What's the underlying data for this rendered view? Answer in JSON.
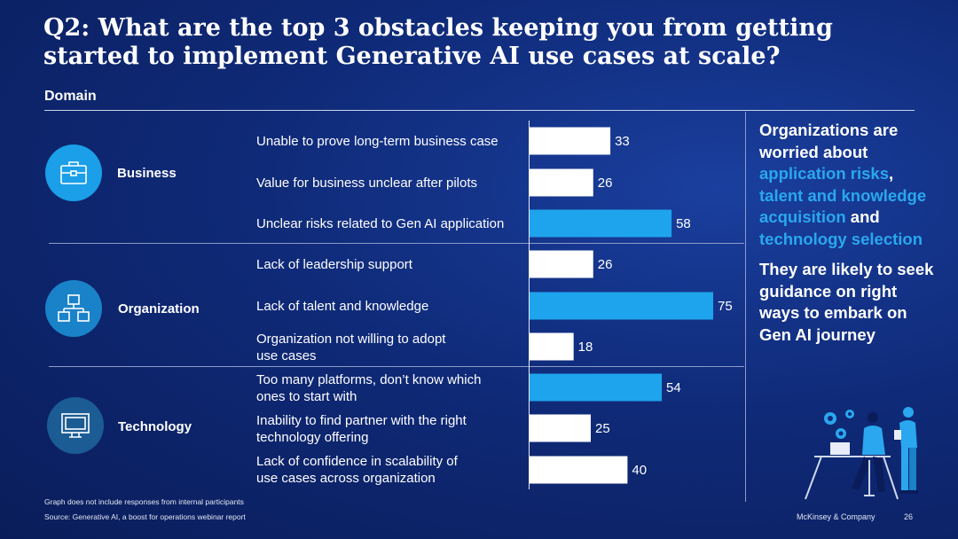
{
  "title": "Q2: What are the top 3 obstacles keeping you from getting started to implement Generative AI use cases at scale?",
  "domain_label": "Domain",
  "categories": [
    {
      "label": "Business",
      "icon": "briefcase-icon"
    },
    {
      "label": "Organization",
      "icon": "org-chart-icon"
    },
    {
      "label": "Technology",
      "icon": "monitor-icon"
    }
  ],
  "colors": {
    "white_bar": "#ffffff",
    "highlight_bar": "#1ea4ec",
    "accent_text": "#2aa7ee"
  },
  "chart_data": {
    "type": "bar",
    "orientation": "horizontal",
    "categories": [
      "Unable to prove long-term business case",
      "Value for business unclear after pilots",
      "Unclear risks related to Gen AI application",
      "Lack of leadership support",
      "Lack of talent and knowledge",
      "Organization not willing to adopt use cases",
      "Too many platforms, don’t know which ones to start with",
      "Inability to find partner with the right technology offering",
      "Lack of confidence in scalability of use cases across organization"
    ],
    "label_lines": [
      [
        "Unable to prove long-term business case"
      ],
      [
        "Value for business unclear after pilots"
      ],
      [
        "Unclear risks related to Gen AI application"
      ],
      [
        "Lack of leadership support"
      ],
      [
        "Lack of talent and knowledge"
      ],
      [
        "Organization not willing to adopt",
        "use cases"
      ],
      [
        "Too many platforms, don’t know which",
        "ones to start with"
      ],
      [
        "Inability to find partner with the right",
        "technology offering"
      ],
      [
        "Lack of confidence in scalability of",
        "use cases across organization"
      ]
    ],
    "values": [
      33,
      26,
      58,
      26,
      75,
      18,
      54,
      25,
      40
    ],
    "highlighted": [
      false,
      false,
      true,
      false,
      true,
      false,
      true,
      false,
      false
    ],
    "groups": [
      "Business",
      "Business",
      "Business",
      "Organization",
      "Organization",
      "Organization",
      "Technology",
      "Technology",
      "Technology"
    ],
    "xlim": [
      0,
      80
    ]
  },
  "sidebar": {
    "p1_a": "Organizations are worried about ",
    "p1_hl1": "application risks",
    "p1_b": ", ",
    "p1_hl2": "talent and knowledge acquisition",
    "p1_c": " and ",
    "p1_hl3": "technology selection",
    "p2": "They are likely to seek guidance on right ways to embark on Gen AI journey"
  },
  "footnote": "Graph does not include responses from internal participants",
  "source": "Source: Generative AI, a boost for operations webinar report",
  "brand": "McKinsey & Company",
  "page_number": "26"
}
